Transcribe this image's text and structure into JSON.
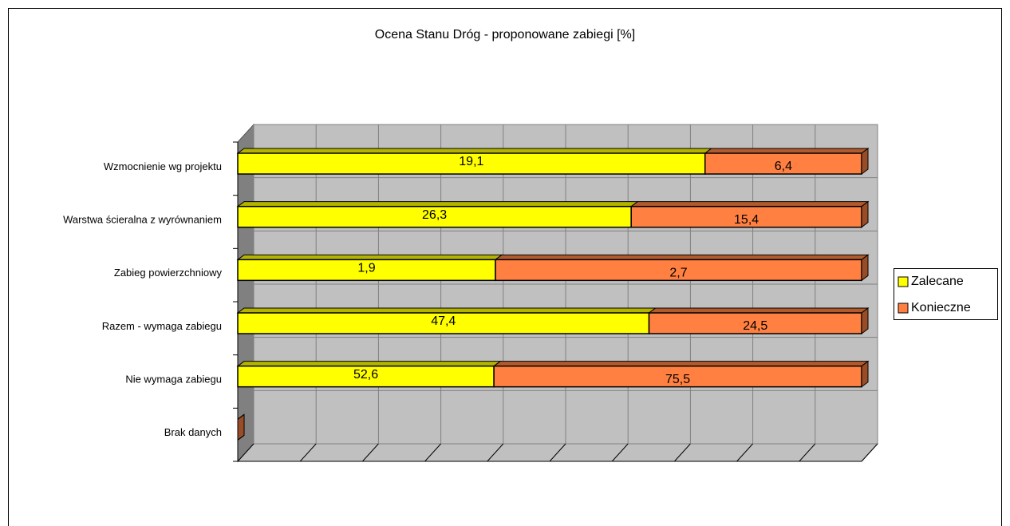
{
  "chart_data": {
    "type": "bar",
    "orientation": "horizontal",
    "stacking": "percent",
    "title": "Ocena Stanu Dróg - proponowane zabiegi [%]",
    "categories": [
      "Wzmocnienie wg projektu",
      "Warstwa ścieralna z wyrównaniem",
      "Zabieg powierzchniowy",
      "Razem - wymaga zabiegu",
      "Nie wymaga zabiegu",
      "Brak danych"
    ],
    "series": [
      {
        "name": "Zalecane",
        "color": "#ffff00",
        "values": [
          19.1,
          26.3,
          1.9,
          47.4,
          52.6,
          0
        ],
        "value_labels": [
          "19,1",
          "26,3",
          "1,9",
          "47,4",
          "52,6",
          null
        ]
      },
      {
        "name": "Konieczne",
        "color": "#ff8040",
        "values": [
          6.4,
          15.4,
          2.7,
          24.5,
          75.5,
          0
        ],
        "value_labels": [
          "6,4",
          "15,4",
          "2,7",
          "24,5",
          "75,5",
          null
        ]
      }
    ],
    "xlim": [
      0,
      100
    ],
    "xticks": [
      0,
      10,
      20,
      30,
      40,
      50,
      60,
      70,
      80,
      90,
      100
    ],
    "grid": true,
    "legend": "right"
  }
}
